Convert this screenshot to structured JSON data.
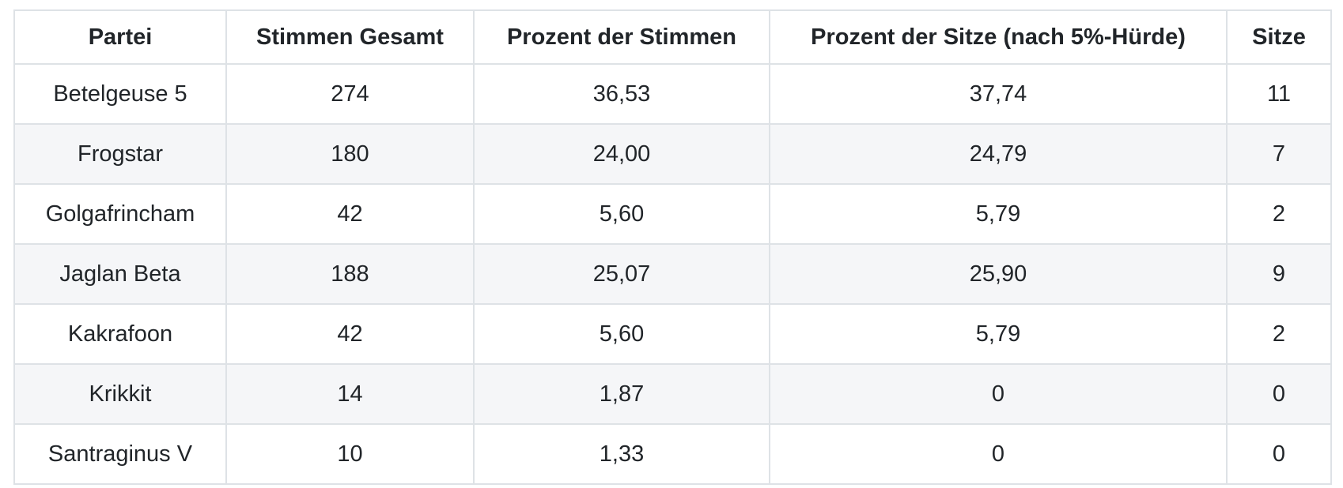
{
  "chart_data": {
    "type": "table",
    "columns": [
      "Partei",
      "Stimmen Gesamt",
      "Prozent der Stimmen",
      "Prozent der Sitze (nach 5%-Hürde)",
      "Sitze"
    ],
    "rows": [
      [
        "Betelgeuse 5",
        "274",
        "36,53",
        "37,74",
        "11"
      ],
      [
        "Frogstar",
        "180",
        "24,00",
        "24,79",
        "7"
      ],
      [
        "Golgafrincham",
        "42",
        "5,60",
        "5,79",
        "2"
      ],
      [
        "Jaglan Beta",
        "188",
        "25,07",
        "25,90",
        "9"
      ],
      [
        "Kakrafoon",
        "42",
        "5,60",
        "5,79",
        "2"
      ],
      [
        "Krikkit",
        "14",
        "1,87",
        "0",
        "0"
      ],
      [
        "Santraginus V",
        "10",
        "1,33",
        "0",
        "0"
      ]
    ],
    "layout": {
      "striped_rows": "even",
      "header_position": "top",
      "alignment": "center"
    }
  },
  "colors": {
    "border": "#dee2e6",
    "stripe": "#f5f6f8",
    "text": "#212529",
    "background": "#ffffff"
  }
}
